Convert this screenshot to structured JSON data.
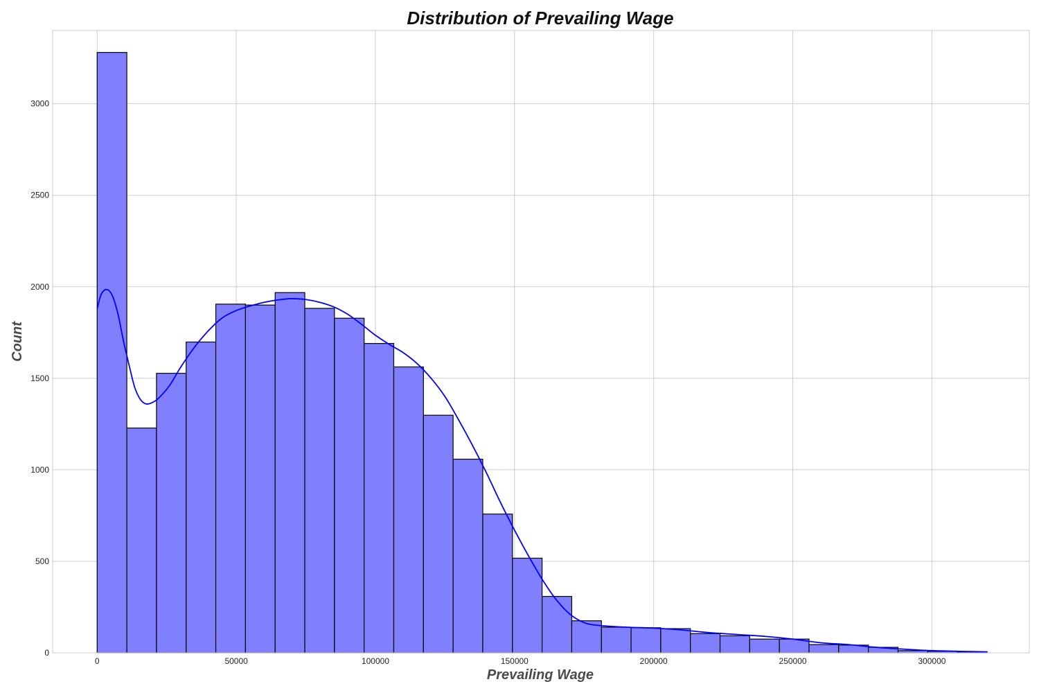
{
  "chart_data": {
    "type": "bar",
    "title": "Distribution of Prevailing Wage",
    "xlabel": "Prevailing Wage",
    "ylabel": "Count",
    "xlim": [
      -16000,
      335000
    ],
    "ylim": [
      0,
      3400
    ],
    "xticks": [
      0,
      50000,
      100000,
      150000,
      200000,
      250000,
      300000
    ],
    "yticks": [
      0,
      500,
      1000,
      1500,
      2000,
      2500,
      3000
    ],
    "grid": true,
    "bar_color": "#8080ff",
    "edge_color": "#000000",
    "kde_color": "#0000ff",
    "bins": {
      "start": 0,
      "width": 10660,
      "counts": [
        3280,
        1228,
        1527,
        1698,
        1905,
        1900,
        1968,
        1882,
        1828,
        1690,
        1562,
        1298,
        1058,
        758,
        517,
        308,
        175,
        140,
        137,
        132,
        105,
        93,
        75,
        75,
        45,
        42,
        30,
        12,
        8,
        5
      ]
    },
    "kde": {
      "x": [
        0,
        1500,
        3500,
        5500,
        7500,
        9500,
        11500,
        13500,
        15500,
        17500,
        19500,
        22000,
        26000,
        30000,
        35000,
        40000,
        45000,
        50000,
        55000,
        60000,
        65000,
        70000,
        75000,
        80000,
        85000,
        90000,
        95000,
        100000,
        105000,
        110000,
        115000,
        120000,
        125000,
        130000,
        135000,
        140000,
        145000,
        150000,
        155000,
        160000,
        165000,
        170000,
        175000,
        180000,
        190000,
        200000,
        210000,
        220000,
        230000,
        240000,
        250000,
        260000,
        270000,
        280000,
        290000,
        300000,
        310000,
        320000
      ],
      "y": [
        1880,
        1960,
        1985,
        1950,
        1850,
        1700,
        1570,
        1450,
        1385,
        1360,
        1365,
        1390,
        1460,
        1560,
        1670,
        1760,
        1830,
        1870,
        1895,
        1915,
        1928,
        1935,
        1930,
        1915,
        1890,
        1850,
        1795,
        1735,
        1685,
        1640,
        1580,
        1500,
        1400,
        1270,
        1130,
        980,
        820,
        670,
        530,
        400,
        290,
        210,
        165,
        150,
        140,
        135,
        125,
        110,
        100,
        90,
        75,
        55,
        45,
        30,
        20,
        12,
        8,
        5
      ]
    }
  }
}
